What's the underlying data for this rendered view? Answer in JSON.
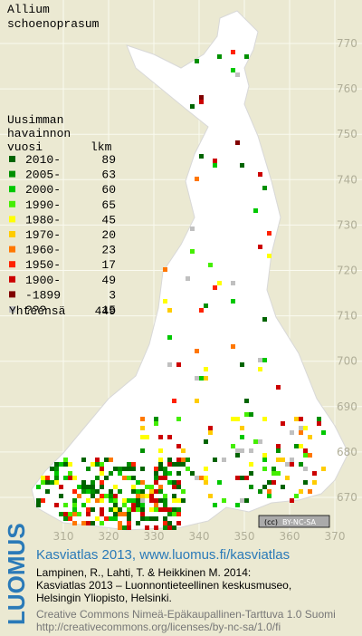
{
  "title": [
    "Allium",
    "schoenoprasum"
  ],
  "legend": {
    "heading": [
      "Uusimman",
      "havainnon",
      "vuosi"
    ],
    "count_heading": "lkm",
    "items": [
      {
        "label": "2010-",
        "count": 89,
        "color": "#006400"
      },
      {
        "label": "2005-",
        "count": 63,
        "color": "#009000"
      },
      {
        "label": "2000-",
        "count": 60,
        "color": "#00c800"
      },
      {
        "label": "1990-",
        "count": 65,
        "color": "#44ee00"
      },
      {
        "label": "1980-",
        "count": 45,
        "color": "#ffff00"
      },
      {
        "label": "1970-",
        "count": 20,
        "color": "#ffcc00"
      },
      {
        "label": "1960-",
        "count": 23,
        "color": "#ff7700"
      },
      {
        "label": "1950-",
        "count": 17,
        "color": "#ff2200"
      },
      {
        "label": "1900-",
        "count": 49,
        "color": "#cc0000"
      },
      {
        "label": "-1899",
        "count": 3,
        "color": "#800000"
      },
      {
        "label": "???",
        "count": 15,
        "color": "#c0c0c0"
      }
    ],
    "total_label": "Yhteensä",
    "total": 449
  },
  "map": {
    "yticks": [
      770,
      760,
      750,
      740,
      730,
      720,
      710,
      700,
      690,
      680,
      670
    ],
    "xticks": [
      310,
      320,
      330,
      340,
      350,
      360,
      370
    ],
    "license_badge": "BY-NC-SA"
  },
  "footer": {
    "logo": "LUOMUS",
    "title": "Kasviatlas 2013, www.luomus.fi/kasviatlas",
    "citation": [
      "Lampinen, R., Lahti, T. & Heikkinen M. 2014:",
      "Kasviatlas 2013 – Luonnontieteellinen keskusmuseo,",
      "Helsingin Yliopisto, Helsinki."
    ],
    "license": [
      "Creative Commons Nimeä-Epäkaupallinen-Tarttuva 1.0 Suomi",
      "http://creativecommons.org/licenses/by-nc-sa/1.0/fi"
    ]
  }
}
